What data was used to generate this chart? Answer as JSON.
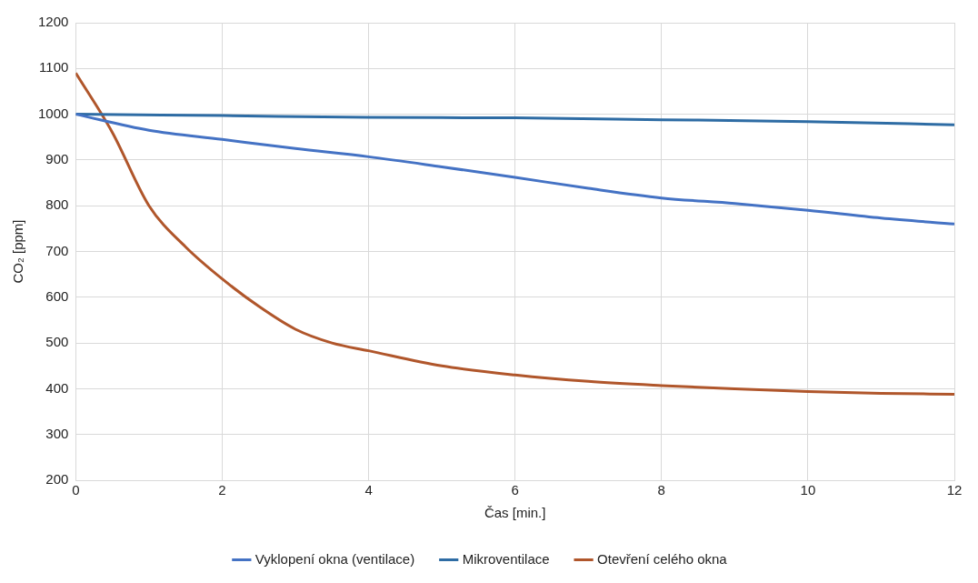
{
  "chart_data": {
    "type": "line",
    "xlabel": "Čas [min.]",
    "ylabel": "CO₂ [ppm]",
    "xlim": [
      0,
      12
    ],
    "xticks": [
      0,
      2,
      4,
      6,
      8,
      10,
      12
    ],
    "ylim": [
      200,
      1200
    ],
    "yticks": [
      200,
      300,
      400,
      500,
      600,
      700,
      800,
      900,
      1000,
      1100,
      1200
    ],
    "grid": true,
    "legend": "bottom",
    "marker": "none",
    "line_style": "solid",
    "series": [
      {
        "name": "Vyklopení okna (ventilace)",
        "color": "#4472c4",
        "x": [
          0,
          1,
          2,
          3,
          4,
          5,
          6,
          7,
          8,
          9,
          10,
          11,
          12
        ],
        "values": [
          1000,
          965,
          945,
          925,
          907,
          885,
          862,
          838,
          817,
          805,
          790,
          773,
          760
        ]
      },
      {
        "name": "Mikroventilace",
        "color": "#2e6ca4",
        "x": [
          0,
          2,
          4,
          6,
          8,
          10,
          12
        ],
        "values": [
          1000,
          997,
          993,
          992,
          988,
          984,
          977
        ]
      },
      {
        "name": "Otevření celého okna",
        "color": "#b0562b",
        "x": [
          0,
          0.5,
          1,
          1.5,
          2,
          2.5,
          3,
          3.5,
          4,
          5,
          6,
          7,
          8,
          9,
          10,
          11,
          12
        ],
        "values": [
          1090,
          960,
          800,
          710,
          640,
          580,
          530,
          500,
          483,
          450,
          430,
          416,
          407,
          400,
          394,
          390,
          388
        ]
      }
    ]
  }
}
